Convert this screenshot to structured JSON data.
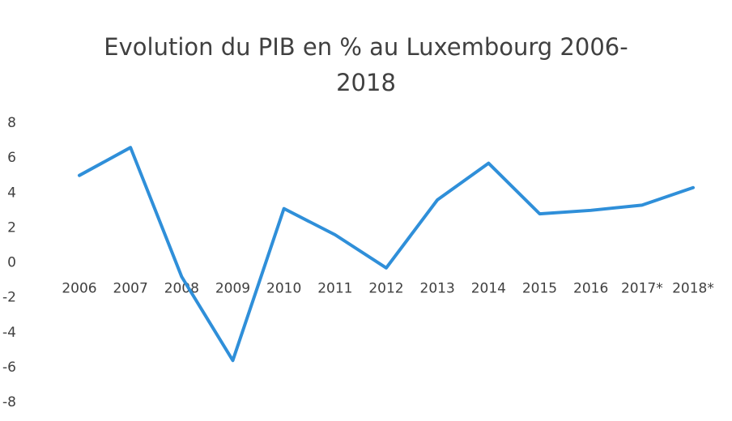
{
  "chart_data": {
    "type": "line",
    "title": "Evolution du PIB en % au Luxembourg 2006-2018",
    "categories": [
      "2006",
      "2007",
      "2008",
      "2009",
      "2010",
      "2011",
      "2012",
      "2013",
      "2014",
      "2015",
      "2016",
      "2017*",
      "2018*"
    ],
    "series": [
      {
        "name": "PIB",
        "color": "#2f8fd9",
        "values": [
          5.0,
          6.6,
          -0.8,
          -5.6,
          3.1,
          1.6,
          -0.3,
          3.6,
          5.7,
          2.8,
          3.0,
          3.3,
          4.3
        ]
      }
    ],
    "ylim": [
      -8,
      8
    ],
    "yticks": [
      -8,
      -6,
      -4,
      -2,
      0,
      2,
      4,
      6,
      8
    ],
    "grid": false,
    "legend": false
  }
}
